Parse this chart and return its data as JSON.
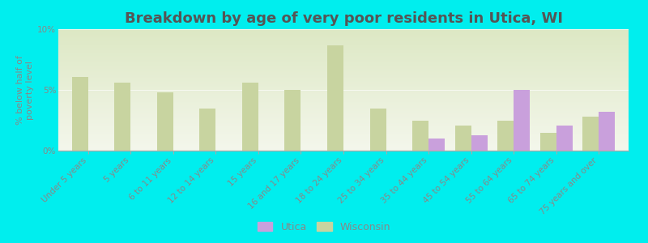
{
  "title": "Breakdown by age of very poor residents in Utica, WI",
  "ylabel": "% below half of\npoverty level",
  "categories": [
    "Under 5 years",
    "5 years",
    "6 to 11 years",
    "12 to 14 years",
    "15 years",
    "16 and 17 years",
    "18 to 24 years",
    "25 to 34 years",
    "35 to 44 years",
    "45 to 54 years",
    "55 to 64 years",
    "65 to 74 years",
    "75 years and over"
  ],
  "utica": [
    0.0,
    0.0,
    0.0,
    0.0,
    0.0,
    0.0,
    0.0,
    0.0,
    1.0,
    1.3,
    5.0,
    2.1,
    3.2
  ],
  "wisconsin": [
    6.1,
    5.6,
    4.8,
    3.5,
    5.6,
    5.0,
    8.7,
    3.5,
    2.5,
    2.1,
    2.5,
    1.5,
    2.8
  ],
  "utica_color": "#c9a0dc",
  "wisconsin_color": "#c8d4a0",
  "background_color": "#00eeee",
  "grad_top": "#dde8c4",
  "grad_bottom": "#f4f7ec",
  "title_color": "#555555",
  "label_color": "#888888",
  "ylim": [
    0,
    10
  ],
  "yticks": [
    0,
    5,
    10
  ],
  "ytick_labels": [
    "0%",
    "5%",
    "10%"
  ],
  "bar_width": 0.38,
  "title_fontsize": 13,
  "tick_fontsize": 7.5,
  "ylabel_fontsize": 8,
  "legend_fontsize": 9
}
